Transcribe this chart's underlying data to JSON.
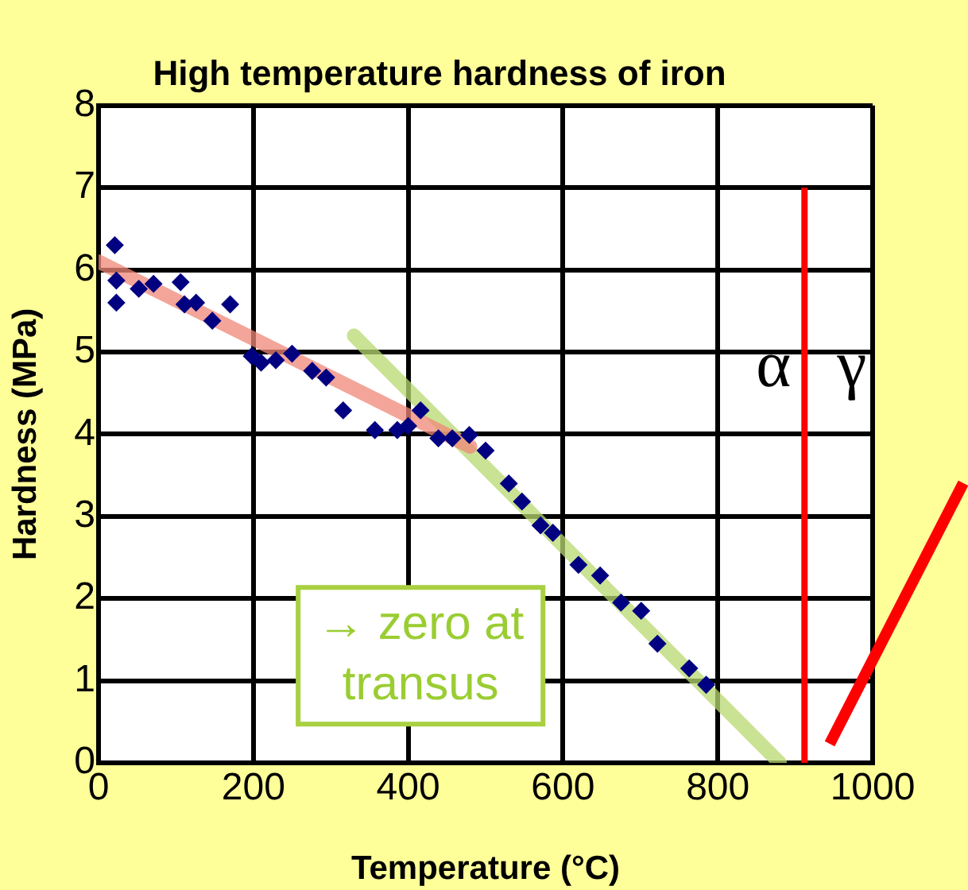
{
  "chart_data": {
    "type": "scatter",
    "title": "High temperature hardness of iron",
    "xlabel": "Temperature (°C)",
    "ylabel": "Hardness (MPa)",
    "xlim": [
      0,
      1000
    ],
    "xticks": [
      0,
      200,
      400,
      600,
      800,
      1000
    ],
    "ylim": [
      0,
      8
    ],
    "yticks": [
      0,
      1,
      2,
      3,
      4,
      5,
      6,
      7,
      8
    ],
    "grid": true,
    "legend": false,
    "series": [
      {
        "marker": "diamond",
        "color": "#000080",
        "x": [
          21,
          23,
          23,
          52,
          71,
          106,
          111,
          126,
          147,
          170,
          198,
          210,
          229,
          250,
          276,
          294,
          316,
          357,
          386,
          400,
          416,
          439,
          457,
          479,
          500,
          530,
          547,
          571,
          587,
          620,
          648,
          675,
          701,
          722,
          763,
          785
        ],
        "values": [
          6.3,
          5.87,
          5.6,
          5.77,
          5.83,
          5.85,
          5.58,
          5.6,
          5.38,
          5.58,
          4.95,
          4.87,
          4.9,
          4.98,
          4.77,
          4.69,
          4.29,
          4.05,
          4.05,
          4.1,
          4.29,
          3.95,
          3.95,
          3.99,
          3.8,
          3.4,
          3.18,
          2.89,
          2.8,
          2.41,
          2.28,
          1.95,
          1.85,
          1.45,
          1.15,
          0.95
        ]
      },
      {
        "type": "line",
        "color": "#f08878",
        "x": [
          0,
          480
        ],
        "values": [
          6.1,
          3.85
        ]
      },
      {
        "type": "line",
        "color": "#b8d870",
        "x": [
          330,
          880
        ],
        "values": [
          5.2,
          0
        ]
      }
    ],
    "ref_lines": [
      {
        "axis": "x",
        "value": 912,
        "color": "#ff0000"
      }
    ],
    "annotations": [
      "α",
      "γ",
      "→ zero at\ntransus"
    ]
  }
}
